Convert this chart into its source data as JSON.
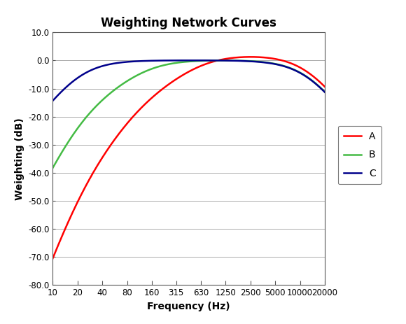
{
  "title": "Weighting Network Curves",
  "xlabel": "Frequency (Hz)",
  "ylabel": "Weighting (dB)",
  "xlim_log": [
    10,
    20000
  ],
  "ylim": [
    -80.0,
    10.0
  ],
  "yticks": [
    10.0,
    0.0,
    -10.0,
    -20.0,
    -30.0,
    -40.0,
    -50.0,
    -60.0,
    -70.0,
    -80.0
  ],
  "xtick_labels": [
    "10",
    "20",
    "40",
    "80",
    "160",
    "315",
    "630",
    "1250",
    "2500",
    "5000",
    "10000",
    "20000"
  ],
  "xtick_values": [
    10,
    20,
    40,
    80,
    160,
    315,
    630,
    1250,
    2500,
    5000,
    10000,
    20000
  ],
  "curve_A_color": "#ff0000",
  "curve_B_color": "#44bb44",
  "curve_C_color": "#00008b",
  "line_width": 1.8,
  "legend_labels": [
    "A",
    "B",
    "C"
  ],
  "background_color": "#ffffff",
  "plot_bg_color": "#ffffff",
  "grid_color": "#aaaaaa",
  "title_fontsize": 12,
  "axis_label_fontsize": 10,
  "tick_fontsize": 8.5,
  "legend_fontsize": 10
}
